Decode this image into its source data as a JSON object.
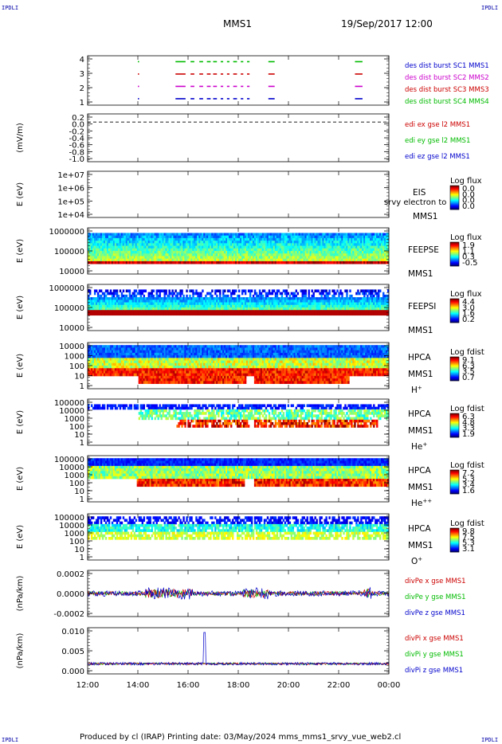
{
  "corners": {
    "tl": "IPDLI",
    "tr": "IPDLI",
    "bl": "IPDLI",
    "br": "IPDLI"
  },
  "header": {
    "title": "MMS1",
    "date": "19/Sep/2017 12:00"
  },
  "footer": "Produced by cl (IRAP)   Printing date: 03/May/2024   mms_mms1_srvy_vue_web2.cl",
  "x_ticks": [
    "12:00",
    "14:00",
    "16:00",
    "18:00",
    "20:00",
    "22:00",
    "00:00"
  ],
  "chart_data": [
    {
      "type": "scatter",
      "id": "burst",
      "yticks": [
        "4",
        "3",
        "2",
        "1"
      ],
      "legend": [
        {
          "text": "des dist burst SC1 MMS1",
          "color": "#0000cc"
        },
        {
          "text": "des dist burst SC2 MMS2",
          "color": "#cc00cc"
        },
        {
          "text": "des dist burst SC3 MMS3",
          "color": "#cc0000"
        },
        {
          "text": "des dist burst SC4 MMS4",
          "color": "#00bb00"
        }
      ],
      "segments": [
        [
          14.0,
          14.05
        ],
        [
          15.5,
          15.9
        ],
        [
          16.1,
          16.25
        ],
        [
          16.45,
          16.6
        ],
        [
          16.75,
          16.9
        ],
        [
          17.0,
          17.15
        ],
        [
          17.3,
          17.4
        ],
        [
          17.55,
          17.65
        ],
        [
          17.8,
          17.95
        ],
        [
          18.1,
          18.2
        ],
        [
          18.35,
          18.45
        ],
        [
          19.2,
          19.45
        ],
        [
          22.65,
          22.95
        ]
      ]
    },
    {
      "type": "line",
      "id": "edi",
      "ylabel": "(mV/m)",
      "yticks": [
        "0.2",
        "0.0",
        "-0.2",
        "-0.4",
        "-0.6",
        "-0.8",
        "-1.0"
      ],
      "legend": [
        {
          "text": "edi ex gse l2 MMS1",
          "color": "#cc0000"
        },
        {
          "text": "edi ey gse l2 MMS1",
          "color": "#00bb00"
        },
        {
          "text": "edi ez gse l2 MMS1",
          "color": "#0000cc"
        }
      ]
    },
    {
      "type": "heatmap",
      "id": "eis",
      "ylabel": "E (eV)",
      "yticks": [
        "1e+07",
        "1e+06",
        "1e+05",
        "1e+04"
      ],
      "labels": [
        "EIS",
        "MMS1"
      ],
      "overlay": "srvy electron to",
      "cbar": {
        "title": "Log flux",
        "ticks": [
          "0.0",
          "0.0",
          "0.0",
          "0.0"
        ]
      }
    },
    {
      "type": "heatmap",
      "id": "feepse",
      "ylabel": "E (eV)",
      "yticks": [
        "1000000",
        "100000",
        "10000"
      ],
      "labels": [
        "FEEPSE",
        "MMS1"
      ],
      "cbar": {
        "title": "Log flux",
        "ticks": [
          "1.9",
          "1.1",
          "0.3",
          "-0.5"
        ]
      }
    },
    {
      "type": "heatmap",
      "id": "feepsi",
      "ylabel": "E (eV)",
      "yticks": [
        "1000000",
        "100000",
        "10000"
      ],
      "labels": [
        "FEEPSI",
        "MMS1"
      ],
      "cbar": {
        "title": "Log flux",
        "ticks": [
          "4.4",
          "3.0",
          "1.6",
          "0.2"
        ]
      }
    },
    {
      "type": "heatmap",
      "id": "hpca_h",
      "ylabel": "E (eV)",
      "yticks": [
        "10000",
        "1000",
        "100",
        "10",
        "1"
      ],
      "labels": [
        "HPCA",
        "MMS1",
        "H"
      ],
      "species_sup": "+",
      "cbar": {
        "title": "Log fdist",
        "ticks": [
          "9.1",
          "6.3",
          "3.5",
          "0.7"
        ]
      }
    },
    {
      "type": "heatmap",
      "id": "hpca_he",
      "ylabel": "E (eV)",
      "yticks": [
        "100000",
        "10000",
        "1000",
        "100",
        "10",
        "1"
      ],
      "labels": [
        "HPCA",
        "MMS1",
        "He"
      ],
      "species_sup": "+",
      "cbar": {
        "title": "Log fdist",
        "ticks": [
          "6.3",
          "4.8",
          "3.3",
          "1.9"
        ]
      }
    },
    {
      "type": "heatmap",
      "id": "hpca_he2",
      "ylabel": "E (eV)",
      "yticks": [
        "100000",
        "10000",
        "1000",
        "100",
        "10",
        "1"
      ],
      "labels": [
        "HPCA",
        "MMS1",
        "He"
      ],
      "species_sup": "++",
      "cbar": {
        "title": "Log fdist",
        "ticks": [
          "7.2",
          "5.3",
          "3.4",
          "1.6"
        ]
      }
    },
    {
      "type": "heatmap",
      "id": "hpca_o",
      "ylabel": "E (eV)",
      "yticks": [
        "100000",
        "10000",
        "1000",
        "100",
        "10",
        "1"
      ],
      "labels": [
        "HPCA",
        "MMS1",
        "O"
      ],
      "species_sup": "+",
      "cbar": {
        "title": "Log fdist",
        "ticks": [
          "9.8",
          "7.5",
          "5.3",
          "3.1"
        ]
      }
    },
    {
      "type": "line",
      "id": "divpe",
      "ylabel": "(nPa/km)",
      "yticks": [
        "0.0002",
        "0.0000",
        "-0.0002"
      ],
      "legend": [
        {
          "text": "divPe x gse MMS1",
          "color": "#cc0000"
        },
        {
          "text": "divPe y gse MMS1",
          "color": "#00bb00"
        },
        {
          "text": "divPe z gse MMS1",
          "color": "#0000cc"
        }
      ]
    },
    {
      "type": "line",
      "id": "divpi",
      "ylabel": "(nPa/km)",
      "yticks": [
        "0.010",
        "0.005",
        "0.000"
      ],
      "legend": [
        {
          "text": "divPi x gse MMS1",
          "color": "#cc0000"
        },
        {
          "text": "divPi y gse MMS1",
          "color": "#00bb00"
        },
        {
          "text": "divPi z gse MMS1",
          "color": "#0000cc"
        }
      ]
    }
  ]
}
